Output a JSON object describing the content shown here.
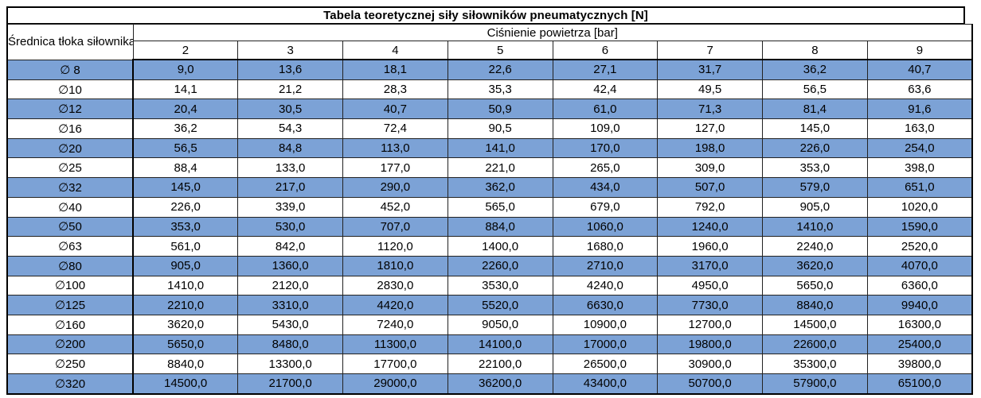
{
  "chart_data": {
    "type": "table",
    "title": "Tabela teoretycznej siły siłowników pneumatycznych [N]",
    "row_header": "Średnica tłoka siłownika",
    "column_group_header": "Ciśnienie powietrza [bar]",
    "columns": [
      "2",
      "3",
      "4",
      "5",
      "6",
      "7",
      "8",
      "9"
    ],
    "units": {
      "force": "N",
      "pressure": "bar"
    },
    "rows": [
      {
        "label": "∅ 8",
        "highlighted": true,
        "values": [
          "9,0",
          "13,6",
          "18,1",
          "22,6",
          "27,1",
          "31,7",
          "36,2",
          "40,7"
        ]
      },
      {
        "label": "∅10",
        "highlighted": false,
        "values": [
          "14,1",
          "21,2",
          "28,3",
          "35,3",
          "42,4",
          "49,5",
          "56,5",
          "63,6"
        ]
      },
      {
        "label": "∅12",
        "highlighted": true,
        "values": [
          "20,4",
          "30,5",
          "40,7",
          "50,9",
          "61,0",
          "71,3",
          "81,4",
          "91,6"
        ]
      },
      {
        "label": "∅16",
        "highlighted": false,
        "values": [
          "36,2",
          "54,3",
          "72,4",
          "90,5",
          "109,0",
          "127,0",
          "145,0",
          "163,0"
        ]
      },
      {
        "label": "∅20",
        "highlighted": true,
        "values": [
          "56,5",
          "84,8",
          "113,0",
          "141,0",
          "170,0",
          "198,0",
          "226,0",
          "254,0"
        ]
      },
      {
        "label": "∅25",
        "highlighted": false,
        "values": [
          "88,4",
          "133,0",
          "177,0",
          "221,0",
          "265,0",
          "309,0",
          "353,0",
          "398,0"
        ]
      },
      {
        "label": "∅32",
        "highlighted": true,
        "values": [
          "145,0",
          "217,0",
          "290,0",
          "362,0",
          "434,0",
          "507,0",
          "579,0",
          "651,0"
        ]
      },
      {
        "label": "∅40",
        "highlighted": false,
        "values": [
          "226,0",
          "339,0",
          "452,0",
          "565,0",
          "679,0",
          "792,0",
          "905,0",
          "1020,0"
        ]
      },
      {
        "label": "∅50",
        "highlighted": true,
        "values": [
          "353,0",
          "530,0",
          "707,0",
          "884,0",
          "1060,0",
          "1240,0",
          "1410,0",
          "1590,0"
        ]
      },
      {
        "label": "∅63",
        "highlighted": false,
        "values": [
          "561,0",
          "842,0",
          "1120,0",
          "1400,0",
          "1680,0",
          "1960,0",
          "2240,0",
          "2520,0"
        ]
      },
      {
        "label": "∅80",
        "highlighted": true,
        "values": [
          "905,0",
          "1360,0",
          "1810,0",
          "2260,0",
          "2710,0",
          "3170,0",
          "3620,0",
          "4070,0"
        ]
      },
      {
        "label": "∅100",
        "highlighted": false,
        "values": [
          "1410,0",
          "2120,0",
          "2830,0",
          "3530,0",
          "4240,0",
          "4950,0",
          "5650,0",
          "6360,0"
        ]
      },
      {
        "label": "∅125",
        "highlighted": true,
        "values": [
          "2210,0",
          "3310,0",
          "4420,0",
          "5520,0",
          "6630,0",
          "7730,0",
          "8840,0",
          "9940,0"
        ]
      },
      {
        "label": "∅160",
        "highlighted": false,
        "values": [
          "3620,0",
          "5430,0",
          "7240,0",
          "9050,0",
          "10900,0",
          "12700,0",
          "14500,0",
          "16300,0"
        ]
      },
      {
        "label": "∅200",
        "highlighted": true,
        "values": [
          "5650,0",
          "8480,0",
          "11300,0",
          "14100,0",
          "17000,0",
          "19800,0",
          "22600,0",
          "25400,0"
        ]
      },
      {
        "label": "∅250",
        "highlighted": false,
        "values": [
          "8840,0",
          "13300,0",
          "17700,0",
          "22100,0",
          "26500,0",
          "30900,0",
          "35300,0",
          "39800,0"
        ]
      },
      {
        "label": "∅320",
        "highlighted": true,
        "values": [
          "14500,0",
          "21700,0",
          "29000,0",
          "36200,0",
          "43400,0",
          "50700,0",
          "57900,0",
          "65100,0"
        ]
      }
    ],
    "layout": {
      "highlight_row_color": "#7ca2d6",
      "plain_row_color": "#ffffff",
      "border_color": "#000000",
      "alternating": "odd rows highlighted blue"
    }
  }
}
